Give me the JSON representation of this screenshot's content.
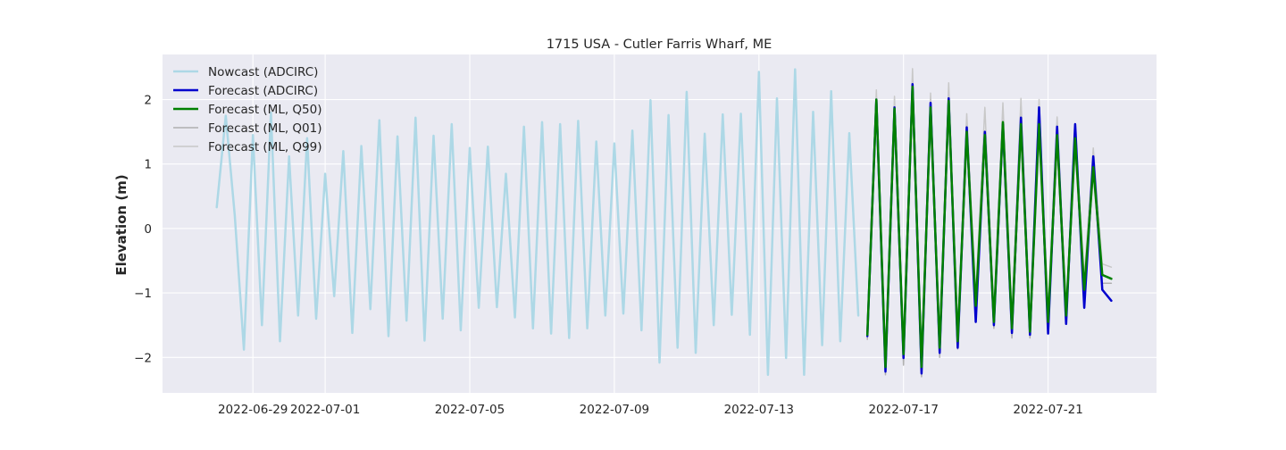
{
  "chart_data": {
    "type": "line",
    "title": "1715 USA - Cutler Farris Wharf, ME",
    "xlabel": "",
    "ylabel": "Elevation (m)",
    "x_axis_type": "date",
    "xlim": [
      "2022-06-26T12:00",
      "2022-07-24T00:00"
    ],
    "ylim": [
      -2.55,
      2.7
    ],
    "grid": true,
    "legend_position": "top-left",
    "x_ticks": [
      "2022-06-29",
      "2022-07-01",
      "2022-07-05",
      "2022-07-09",
      "2022-07-13",
      "2022-07-17",
      "2022-07-21"
    ],
    "y_ticks": [
      -2,
      -1,
      0,
      1,
      2
    ],
    "y_tick_labels": [
      "−2",
      "−1",
      "0",
      "1",
      "2"
    ],
    "series": [
      {
        "name": "Nowcast (ADCIRC)",
        "color": "#add8e6",
        "points": [
          [
            "2022-06-28T00:00",
            0.33
          ],
          [
            "2022-06-28T06:00",
            1.75
          ],
          [
            "2022-06-28T12:00",
            0.2
          ],
          [
            "2022-06-28T18:00",
            -1.88
          ],
          [
            "2022-06-29T00:00",
            1.45
          ],
          [
            "2022-06-29T06:00",
            -1.5
          ],
          [
            "2022-06-29T12:00",
            1.8
          ],
          [
            "2022-06-29T18:00",
            -1.75
          ],
          [
            "2022-06-30T00:00",
            1.12
          ],
          [
            "2022-06-30T06:00",
            -1.35
          ],
          [
            "2022-06-30T12:00",
            1.4
          ],
          [
            "2022-06-30T18:00",
            -1.4
          ],
          [
            "2022-07-01T00:00",
            0.85
          ],
          [
            "2022-07-01T06:00",
            -1.05
          ],
          [
            "2022-07-01T12:00",
            1.2
          ],
          [
            "2022-07-01T18:00",
            -1.62
          ],
          [
            "2022-07-02T00:00",
            1.28
          ],
          [
            "2022-07-02T06:00",
            -1.25
          ],
          [
            "2022-07-02T12:00",
            1.68
          ],
          [
            "2022-07-02T18:00",
            -1.67
          ],
          [
            "2022-07-03T00:00",
            1.43
          ],
          [
            "2022-07-03T06:00",
            -1.43
          ],
          [
            "2022-07-03T12:00",
            1.72
          ],
          [
            "2022-07-03T18:00",
            -1.74
          ],
          [
            "2022-07-04T00:00",
            1.44
          ],
          [
            "2022-07-04T06:00",
            -1.4
          ],
          [
            "2022-07-04T12:00",
            1.62
          ],
          [
            "2022-07-04T18:00",
            -1.58
          ],
          [
            "2022-07-05T00:00",
            1.25
          ],
          [
            "2022-07-05T06:00",
            -1.23
          ],
          [
            "2022-07-05T12:00",
            1.27
          ],
          [
            "2022-07-05T18:00",
            -1.22
          ],
          [
            "2022-07-06T00:00",
            0.85
          ],
          [
            "2022-07-06T06:00",
            -1.38
          ],
          [
            "2022-07-06T12:00",
            1.58
          ],
          [
            "2022-07-06T18:00",
            -1.55
          ],
          [
            "2022-07-07T00:00",
            1.65
          ],
          [
            "2022-07-07T06:00",
            -1.63
          ],
          [
            "2022-07-07T12:00",
            1.62
          ],
          [
            "2022-07-07T18:00",
            -1.7
          ],
          [
            "2022-07-08T00:00",
            1.67
          ],
          [
            "2022-07-08T06:00",
            -1.55
          ],
          [
            "2022-07-08T12:00",
            1.35
          ],
          [
            "2022-07-08T18:00",
            -1.35
          ],
          [
            "2022-07-09T00:00",
            1.32
          ],
          [
            "2022-07-09T06:00",
            -1.32
          ],
          [
            "2022-07-09T12:00",
            1.52
          ],
          [
            "2022-07-09T18:00",
            -1.58
          ],
          [
            "2022-07-10T00:00",
            1.99
          ],
          [
            "2022-07-10T06:00",
            -2.08
          ],
          [
            "2022-07-10T12:00",
            1.76
          ],
          [
            "2022-07-10T18:00",
            -1.85
          ],
          [
            "2022-07-11T00:00",
            2.12
          ],
          [
            "2022-07-11T06:00",
            -1.93
          ],
          [
            "2022-07-11T12:00",
            1.47
          ],
          [
            "2022-07-11T18:00",
            -1.5
          ],
          [
            "2022-07-12T00:00",
            1.77
          ],
          [
            "2022-07-12T06:00",
            -1.34
          ],
          [
            "2022-07-12T12:00",
            1.78
          ],
          [
            "2022-07-12T18:00",
            -1.65
          ],
          [
            "2022-07-13T00:00",
            2.43
          ],
          [
            "2022-07-13T06:00",
            -2.27
          ],
          [
            "2022-07-13T12:00",
            2.02
          ],
          [
            "2022-07-13T18:00",
            -2.01
          ],
          [
            "2022-07-14T00:00",
            2.47
          ],
          [
            "2022-07-14T06:00",
            -2.27
          ],
          [
            "2022-07-14T12:00",
            1.81
          ],
          [
            "2022-07-14T18:00",
            -1.81
          ],
          [
            "2022-07-15T00:00",
            2.13
          ],
          [
            "2022-07-15T06:00",
            -1.75
          ],
          [
            "2022-07-15T12:00",
            1.48
          ],
          [
            "2022-07-15T18:00",
            -1.35
          ]
        ]
      },
      {
        "name": "Forecast (ADCIRC)",
        "color": "#0000cd",
        "points": [
          [
            "2022-07-16T00:00",
            -1.67
          ],
          [
            "2022-07-16T06:00",
            2.0
          ],
          [
            "2022-07-16T12:00",
            -2.22
          ],
          [
            "2022-07-16T18:00",
            1.88
          ],
          [
            "2022-07-17T00:00",
            -2.01
          ],
          [
            "2022-07-17T06:00",
            2.24
          ],
          [
            "2022-07-17T12:00",
            -2.25
          ],
          [
            "2022-07-17T18:00",
            1.95
          ],
          [
            "2022-07-18T00:00",
            -1.93
          ],
          [
            "2022-07-18T06:00",
            2.02
          ],
          [
            "2022-07-18T12:00",
            -1.85
          ],
          [
            "2022-07-18T18:00",
            1.57
          ],
          [
            "2022-07-19T00:00",
            -1.45
          ],
          [
            "2022-07-19T06:00",
            1.5
          ],
          [
            "2022-07-19T12:00",
            -1.5
          ],
          [
            "2022-07-19T18:00",
            1.62
          ],
          [
            "2022-07-20T00:00",
            -1.62
          ],
          [
            "2022-07-20T06:00",
            1.72
          ],
          [
            "2022-07-20T12:00",
            -1.65
          ],
          [
            "2022-07-20T18:00",
            1.88
          ],
          [
            "2022-07-21T00:00",
            -1.63
          ],
          [
            "2022-07-21T06:00",
            1.58
          ],
          [
            "2022-07-21T12:00",
            -1.48
          ],
          [
            "2022-07-21T18:00",
            1.62
          ],
          [
            "2022-07-22T00:00",
            -1.23
          ],
          [
            "2022-07-22T06:00",
            1.12
          ],
          [
            "2022-07-22T12:00",
            -0.95
          ],
          [
            "2022-07-22T18:00",
            -1.12
          ]
        ]
      },
      {
        "name": "Forecast (ML, Q50)",
        "color": "#008000",
        "points": [
          [
            "2022-07-16T00:00",
            -1.65
          ],
          [
            "2022-07-16T06:00",
            2.0
          ],
          [
            "2022-07-16T12:00",
            -2.15
          ],
          [
            "2022-07-16T18:00",
            1.86
          ],
          [
            "2022-07-17T00:00",
            -1.95
          ],
          [
            "2022-07-17T06:00",
            2.2
          ],
          [
            "2022-07-17T12:00",
            -2.15
          ],
          [
            "2022-07-17T18:00",
            1.88
          ],
          [
            "2022-07-18T00:00",
            -1.85
          ],
          [
            "2022-07-18T06:00",
            1.98
          ],
          [
            "2022-07-18T12:00",
            -1.75
          ],
          [
            "2022-07-18T18:00",
            1.5
          ],
          [
            "2022-07-19T00:00",
            -1.2
          ],
          [
            "2022-07-19T06:00",
            1.45
          ],
          [
            "2022-07-19T12:00",
            -1.45
          ],
          [
            "2022-07-19T18:00",
            1.65
          ],
          [
            "2022-07-20T00:00",
            -1.55
          ],
          [
            "2022-07-20T06:00",
            1.62
          ],
          [
            "2022-07-20T12:00",
            -1.6
          ],
          [
            "2022-07-20T18:00",
            1.62
          ],
          [
            "2022-07-21T00:00",
            -1.45
          ],
          [
            "2022-07-21T06:00",
            1.45
          ],
          [
            "2022-07-21T12:00",
            -1.35
          ],
          [
            "2022-07-21T18:00",
            1.4
          ],
          [
            "2022-07-22T00:00",
            -0.95
          ],
          [
            "2022-07-22T06:00",
            0.95
          ],
          [
            "2022-07-22T12:00",
            -0.72
          ],
          [
            "2022-07-22T18:00",
            -0.78
          ]
        ]
      },
      {
        "name": "Forecast (ML, Q01)",
        "color": "#b0b0b0",
        "points": [
          [
            "2022-07-16T00:00",
            -1.72
          ],
          [
            "2022-07-16T06:00",
            1.95
          ],
          [
            "2022-07-16T12:00",
            -2.27
          ],
          [
            "2022-07-16T18:00",
            1.8
          ],
          [
            "2022-07-17T00:00",
            -2.12
          ],
          [
            "2022-07-17T06:00",
            2.15
          ],
          [
            "2022-07-17T12:00",
            -2.3
          ],
          [
            "2022-07-17T18:00",
            1.8
          ],
          [
            "2022-07-18T00:00",
            -2.0
          ],
          [
            "2022-07-18T06:00",
            1.9
          ],
          [
            "2022-07-18T12:00",
            -1.87
          ],
          [
            "2022-07-18T18:00",
            1.4
          ],
          [
            "2022-07-19T00:00",
            -1.35
          ],
          [
            "2022-07-19T06:00",
            1.35
          ],
          [
            "2022-07-19T12:00",
            -1.55
          ],
          [
            "2022-07-19T18:00",
            1.45
          ],
          [
            "2022-07-20T00:00",
            -1.7
          ],
          [
            "2022-07-20T06:00",
            1.5
          ],
          [
            "2022-07-20T12:00",
            -1.7
          ],
          [
            "2022-07-20T18:00",
            1.5
          ],
          [
            "2022-07-21T00:00",
            -1.6
          ],
          [
            "2022-07-21T06:00",
            1.3
          ],
          [
            "2022-07-21T12:00",
            -1.45
          ],
          [
            "2022-07-21T18:00",
            1.25
          ],
          [
            "2022-07-22T00:00",
            -1.1
          ],
          [
            "2022-07-22T06:00",
            0.85
          ],
          [
            "2022-07-22T12:00",
            -0.85
          ],
          [
            "2022-07-22T18:00",
            -0.85
          ]
        ]
      },
      {
        "name": "Forecast (ML, Q99)",
        "color": "#c8c8c8",
        "points": [
          [
            "2022-07-16T00:00",
            -1.55
          ],
          [
            "2022-07-16T06:00",
            2.15
          ],
          [
            "2022-07-16T12:00",
            -2.05
          ],
          [
            "2022-07-16T18:00",
            2.05
          ],
          [
            "2022-07-17T00:00",
            -1.8
          ],
          [
            "2022-07-17T06:00",
            2.48
          ],
          [
            "2022-07-17T12:00",
            -1.98
          ],
          [
            "2022-07-17T18:00",
            2.1
          ],
          [
            "2022-07-18T00:00",
            -1.7
          ],
          [
            "2022-07-18T06:00",
            2.26
          ],
          [
            "2022-07-18T12:00",
            -1.6
          ],
          [
            "2022-07-18T18:00",
            1.78
          ],
          [
            "2022-07-19T00:00",
            -1.05
          ],
          [
            "2022-07-19T06:00",
            1.88
          ],
          [
            "2022-07-19T12:00",
            -1.3
          ],
          [
            "2022-07-19T18:00",
            1.95
          ],
          [
            "2022-07-20T00:00",
            -1.35
          ],
          [
            "2022-07-20T06:00",
            2.02
          ],
          [
            "2022-07-20T12:00",
            -1.4
          ],
          [
            "2022-07-20T18:00",
            2.0
          ],
          [
            "2022-07-21T00:00",
            -1.25
          ],
          [
            "2022-07-21T06:00",
            1.73
          ],
          [
            "2022-07-21T12:00",
            -1.2
          ],
          [
            "2022-07-21T18:00",
            1.55
          ],
          [
            "2022-07-22T00:00",
            -0.75
          ],
          [
            "2022-07-22T06:00",
            1.25
          ],
          [
            "2022-07-22T12:00",
            -0.55
          ],
          [
            "2022-07-22T18:00",
            -0.6
          ]
        ]
      }
    ]
  }
}
